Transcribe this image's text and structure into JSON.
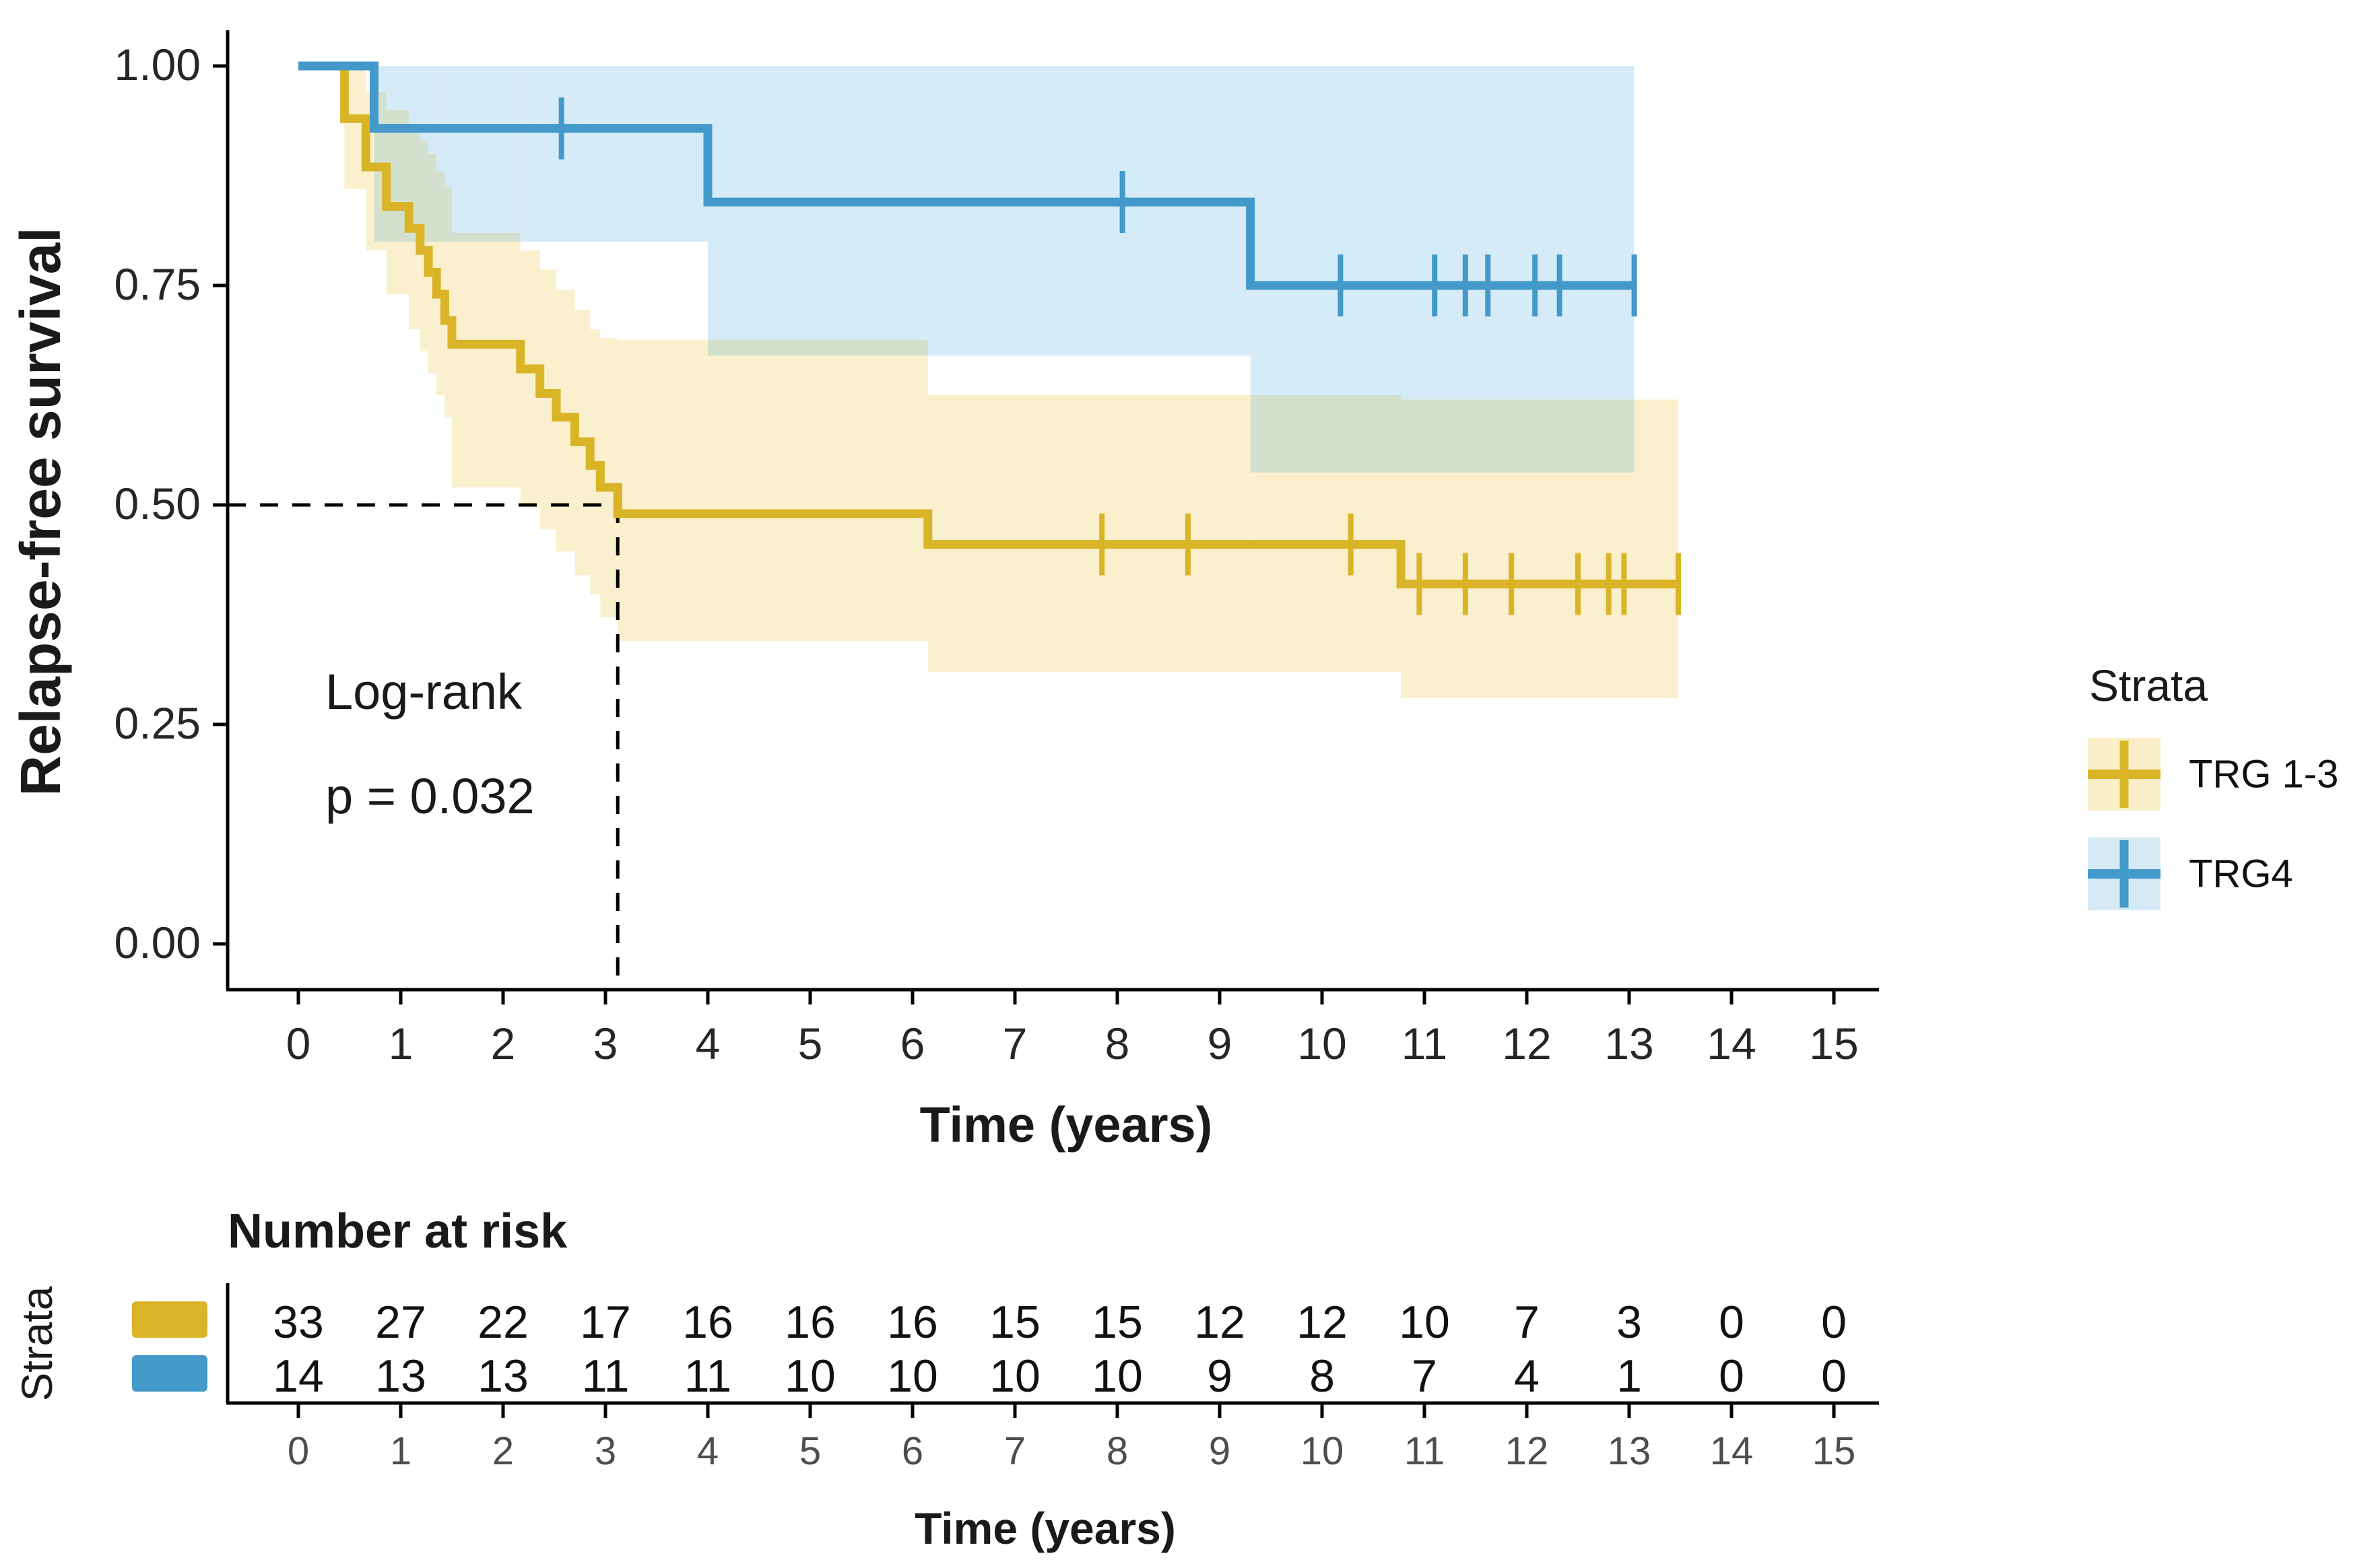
{
  "chart_data": {
    "type": "line",
    "subtype": "kaplan-meier-step",
    "xlabel": "Time (years)",
    "ylabel": "Relapse-free survival",
    "x_ticks": [
      0,
      1,
      2,
      3,
      4,
      5,
      6,
      7,
      8,
      9,
      10,
      11,
      12,
      13,
      14,
      15
    ],
    "y_ticks": [
      "1.00",
      "0.75",
      "0.50",
      "0.25",
      "0.00"
    ],
    "y_tick_values": [
      1.0,
      0.75,
      0.5,
      0.25,
      0.0
    ],
    "xlim": [
      0,
      15
    ],
    "ylim": [
      0,
      1
    ],
    "annotation": {
      "line1": "Log-rank",
      "line2": "p = 0.032"
    },
    "median_guide": {
      "time": 3.12,
      "survival": 0.5
    },
    "overlap_color": "#d3e0ce",
    "series": [
      {
        "name": "TRG 1-3",
        "color": "#d9b427",
        "band_color": "#faf0cd",
        "end_time": 13.48,
        "steps": [
          [
            0,
            1.0
          ],
          [
            0.45,
            0.94
          ],
          [
            0.66,
            0.885
          ],
          [
            0.86,
            0.84
          ],
          [
            1.08,
            0.815
          ],
          [
            1.19,
            0.79
          ],
          [
            1.27,
            0.765
          ],
          [
            1.35,
            0.74
          ],
          [
            1.43,
            0.71
          ],
          [
            1.5,
            0.683
          ],
          [
            2.17,
            0.655
          ],
          [
            2.36,
            0.627
          ],
          [
            2.52,
            0.6
          ],
          [
            2.7,
            0.572
          ],
          [
            2.85,
            0.545
          ],
          [
            2.95,
            0.52
          ],
          [
            3.12,
            0.49
          ],
          [
            6.15,
            0.455
          ],
          [
            10.77,
            0.41
          ]
        ],
        "censors": [
          [
            7.85,
            0.455
          ],
          [
            8.69,
            0.455
          ],
          [
            10.28,
            0.455
          ],
          [
            10.95,
            0.41
          ],
          [
            11.4,
            0.41
          ],
          [
            11.85,
            0.41
          ],
          [
            12.5,
            0.41
          ],
          [
            12.8,
            0.41
          ],
          [
            12.95,
            0.41
          ],
          [
            13.48,
            0.41
          ]
        ],
        "band": [
          [
            0.45,
            0.86,
            1.0
          ],
          [
            0.66,
            0.79,
            0.97
          ],
          [
            0.86,
            0.74,
            0.95
          ],
          [
            1.08,
            0.7,
            0.93
          ],
          [
            1.19,
            0.675,
            0.915
          ],
          [
            1.27,
            0.65,
            0.9
          ],
          [
            1.35,
            0.625,
            0.88
          ],
          [
            1.43,
            0.6,
            0.862
          ],
          [
            1.5,
            0.52,
            0.81
          ],
          [
            2.17,
            0.497,
            0.79
          ],
          [
            2.36,
            0.472,
            0.768
          ],
          [
            2.52,
            0.447,
            0.745
          ],
          [
            2.7,
            0.42,
            0.722
          ],
          [
            2.85,
            0.398,
            0.7
          ],
          [
            2.95,
            0.372,
            0.69
          ],
          [
            3.12,
            0.345,
            0.688
          ],
          [
            6.15,
            0.31,
            0.625
          ],
          [
            10.77,
            0.28,
            0.62
          ]
        ]
      },
      {
        "name": "TRG4",
        "color": "#4399c9",
        "band_color": "#d5ebf7",
        "end_time": 13.05,
        "steps": [
          [
            0,
            1.0
          ],
          [
            0.74,
            0.929
          ],
          [
            4.0,
            0.845
          ],
          [
            9.3,
            0.75
          ]
        ],
        "censors": [
          [
            2.57,
            0.929
          ],
          [
            8.05,
            0.845
          ],
          [
            10.18,
            0.75
          ],
          [
            11.1,
            0.75
          ],
          [
            11.4,
            0.75
          ],
          [
            11.62,
            0.75
          ],
          [
            12.08,
            0.75
          ],
          [
            12.32,
            0.75
          ],
          [
            13.05,
            0.75
          ]
        ],
        "band": [
          [
            0.74,
            0.8,
            1.0
          ],
          [
            4.0,
            0.67,
            1.0
          ],
          [
            9.3,
            0.537,
            1.0
          ]
        ]
      }
    ],
    "risk_table": {
      "title": "Number at risk",
      "strata_label": "Strata",
      "time_label": "Time (years)",
      "times": [
        0,
        1,
        2,
        3,
        4,
        5,
        6,
        7,
        8,
        9,
        10,
        11,
        12,
        13,
        14,
        15
      ],
      "rows": [
        {
          "name": "TRG 1-3",
          "color": "#d9b427",
          "counts": [
            33,
            27,
            22,
            17,
            16,
            16,
            16,
            15,
            15,
            12,
            12,
            10,
            7,
            3,
            0,
            0
          ]
        },
        {
          "name": "TRG4",
          "color": "#4399c9",
          "counts": [
            14,
            13,
            13,
            11,
            11,
            10,
            10,
            10,
            10,
            9,
            8,
            7,
            4,
            1,
            0,
            0
          ]
        }
      ]
    },
    "legend": {
      "title": "Strata",
      "items": [
        {
          "label": "TRG 1-3",
          "line_color": "#d9b427",
          "fill_color": "#faefc8"
        },
        {
          "label": "TRG4",
          "line_color": "#4399c9",
          "fill_color": "#d6eaf6"
        }
      ]
    }
  }
}
